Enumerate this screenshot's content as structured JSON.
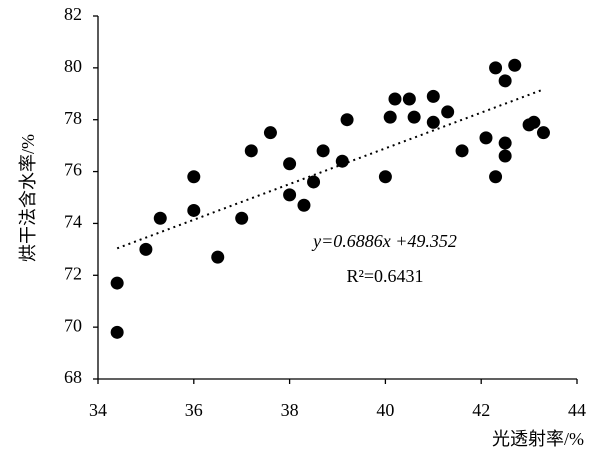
{
  "chart_data": {
    "type": "scatter",
    "x_label": "光透射率/%",
    "y_label": "烘干法含水率/%",
    "x": [
      34.4,
      34.4,
      35.0,
      35.3,
      36.0,
      36.0,
      36.5,
      37.0,
      37.2,
      37.6,
      38.0,
      38.0,
      38.3,
      38.5,
      38.7,
      39.1,
      39.2,
      40.0,
      40.1,
      40.2,
      40.5,
      40.6,
      41.0,
      41.0,
      41.3,
      41.6,
      42.1,
      42.3,
      42.3,
      42.5,
      42.5,
      42.5,
      42.7,
      43.0,
      43.1,
      43.3
    ],
    "values": [
      71.7,
      69.8,
      73.0,
      74.2,
      75.8,
      74.5,
      72.7,
      74.2,
      76.8,
      77.5,
      76.3,
      75.1,
      74.7,
      75.6,
      76.8,
      76.4,
      78.0,
      75.8,
      78.1,
      78.8,
      78.8,
      78.1,
      77.9,
      78.9,
      78.3,
      76.8,
      77.3,
      75.8,
      80.0,
      79.5,
      77.1,
      76.6,
      80.1,
      77.8,
      77.9,
      77.5
    ],
    "color": "#000000",
    "xlim": [
      34,
      44
    ],
    "xticks": [
      34,
      36,
      38,
      40,
      42,
      44
    ],
    "ylim": [
      68,
      82
    ],
    "yticks": [
      68,
      70,
      72,
      74,
      76,
      78,
      80,
      82
    ],
    "trendline": {
      "slope": 0.6886,
      "intercept": 49.352,
      "equation": "y=0.6886x +49.352",
      "r_squared": "R²=0.6431"
    }
  }
}
